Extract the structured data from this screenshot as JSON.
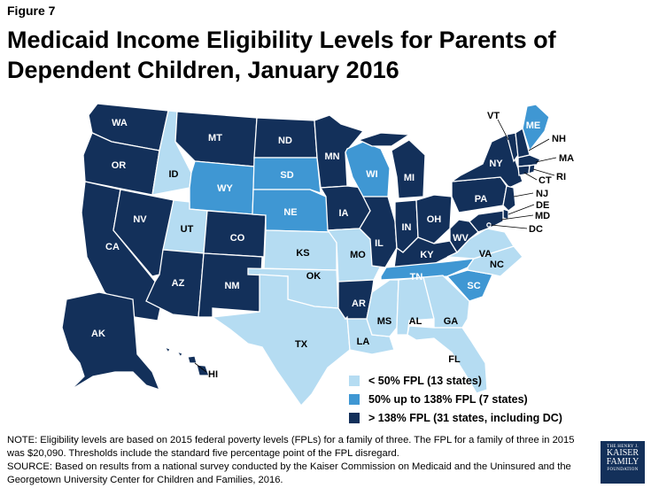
{
  "figure_label": "Figure 7",
  "title": "Medicaid Income Eligibility Levels for Parents of Dependent Children, January 2016",
  "colors": {
    "below_50": "#b5dcf2",
    "50_to_138": "#3f97d3",
    "at_least_138": "#13305a"
  },
  "legend": {
    "items": [
      {
        "category": "below_50",
        "label": "< 50% FPL (13 states)"
      },
      {
        "category": "50_to_138",
        "label": "50% up to 138% FPL (7 states)"
      },
      {
        "category": "at_least_138",
        "label": "> 138% FPL (31 states, including DC)"
      }
    ]
  },
  "states": {
    "WA": "at_least_138",
    "OR": "at_least_138",
    "CA": "at_least_138",
    "NV": "at_least_138",
    "ID": "below_50",
    "MT": "at_least_138",
    "WY": "50_to_138",
    "UT": "below_50",
    "AZ": "at_least_138",
    "CO": "at_least_138",
    "NM": "at_least_138",
    "ND": "at_least_138",
    "SD": "50_to_138",
    "NE": "50_to_138",
    "KS": "below_50",
    "OK": "below_50",
    "TX": "below_50",
    "MN": "at_least_138",
    "IA": "at_least_138",
    "MO": "below_50",
    "AR": "at_least_138",
    "LA": "below_50",
    "WI": "50_to_138",
    "IL": "at_least_138",
    "MS": "below_50",
    "MI": "at_least_138",
    "IN": "at_least_138",
    "OH": "at_least_138",
    "KY": "at_least_138",
    "TN": "50_to_138",
    "AL": "below_50",
    "GA": "below_50",
    "FL": "below_50",
    "SC": "50_to_138",
    "NC": "below_50",
    "VA": "below_50",
    "WV": "at_least_138",
    "PA": "at_least_138",
    "NY": "at_least_138",
    "ME": "50_to_138",
    "VT": "at_least_138",
    "NH": "at_least_138",
    "MA": "at_least_138",
    "RI": "at_least_138",
    "CT": "at_least_138",
    "NJ": "at_least_138",
    "DE": "at_least_138",
    "MD": "at_least_138",
    "DC": "at_least_138",
    "AK": "at_least_138",
    "HI": "at_least_138"
  },
  "state_labels": {
    "WA": "WA",
    "OR": "OR",
    "CA": "CA",
    "NV": "NV",
    "ID": "ID",
    "MT": "MT",
    "WY": "WY",
    "UT": "UT",
    "AZ": "AZ",
    "CO": "CO",
    "NM": "NM",
    "ND": "ND",
    "SD": "SD",
    "NE": "NE",
    "KS": "KS",
    "OK": "OK",
    "TX": "TX",
    "MN": "MN",
    "IA": "IA",
    "MO": "MO",
    "AR": "AR",
    "LA": "LA",
    "WI": "WI",
    "IL": "IL",
    "MS": "MS",
    "MI": "MI",
    "IN": "IN",
    "OH": "OH",
    "KY": "KY",
    "TN": "TN",
    "AL": "AL",
    "GA": "GA",
    "FL": "FL",
    "SC": "SC",
    "NC": "NC",
    "VA": "VA",
    "WV": "WV",
    "PA": "PA",
    "NY": "NY",
    "ME": "ME",
    "VT": "VT",
    "NH": "NH",
    "MA": "MA",
    "RI": "RI",
    "CT": "CT",
    "NJ": "NJ",
    "DE": "DE",
    "MD": "MD",
    "DC": "DC",
    "AK": "AK",
    "HI": "HI"
  },
  "note": "NOTE: Eligibility levels are based on 2015 federal poverty levels (FPLs) for a family of three. The FPL for a family of three in 2015 was $20,090.  Thresholds include the standard five percentage point of the FPL disregard.",
  "source": "SOURCE: Based on results from a national survey conducted by the Kaiser Commission on Medicaid and the Uninsured and the Georgetown University Center for Children and Families, 2016.",
  "logo": {
    "line1": "THE HENRY J.",
    "line2": "KAISER",
    "line3": "FAMILY",
    "line4": "FOUNDATION"
  }
}
